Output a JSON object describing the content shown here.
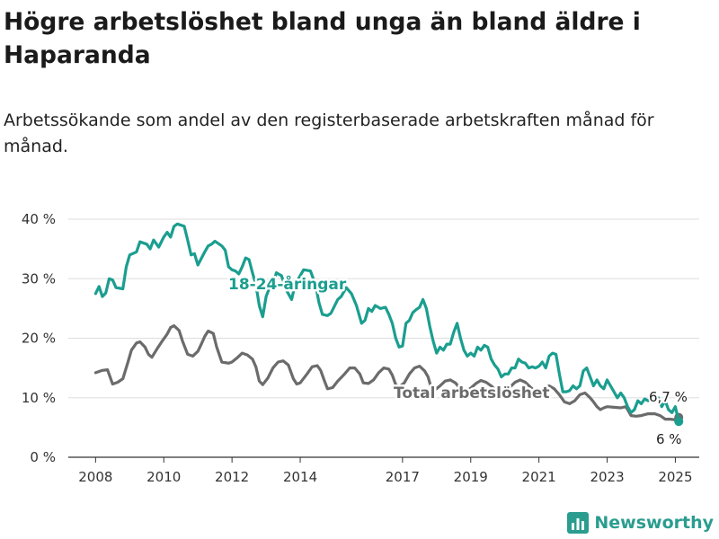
{
  "title": "Högre arbetslöshet bland unga än bland äldre i Haparanda",
  "subtitle": "Arbetssökande som andel av den registerbaserade arbetskraften månad för månad.",
  "logo_text": "Newsworthy",
  "colors": {
    "youth": "#1a9e8f",
    "total": "#6b6b6b",
    "grid": "#dddddd",
    "axis": "#333333",
    "logo": "#2a9d8f"
  },
  "chart_data": {
    "type": "line",
    "ylim": [
      0,
      40
    ],
    "y_ticks": [
      0,
      10,
      20,
      30,
      40
    ],
    "y_tick_labels": [
      "0 %",
      "10 %",
      "20 %",
      "30 %",
      "40 %"
    ],
    "x_ticks": [
      2008,
      2010,
      2012,
      2014,
      2017,
      2019,
      2021,
      2023,
      2025
    ],
    "x_tick_labels": [
      "2008",
      "2010",
      "2012",
      "2014",
      "2017",
      "2019",
      "2021",
      "2023",
      "2025"
    ],
    "grid": true,
    "series": [
      {
        "name": "18-24-åringar",
        "color": "#1a9e8f",
        "end_label": "6 %",
        "points": [
          [
            2008.0,
            27.5
          ],
          [
            2008.1,
            28.7
          ],
          [
            2008.2,
            27.0
          ],
          [
            2008.3,
            27.6
          ],
          [
            2008.4,
            30.0
          ],
          [
            2008.5,
            29.8
          ],
          [
            2008.6,
            28.5
          ],
          [
            2008.8,
            28.3
          ],
          [
            2008.9,
            32.0
          ],
          [
            2009.0,
            34.0
          ],
          [
            2009.2,
            34.5
          ],
          [
            2009.3,
            36.2
          ],
          [
            2009.5,
            35.8
          ],
          [
            2009.6,
            35.0
          ],
          [
            2009.7,
            36.5
          ],
          [
            2009.85,
            35.3
          ],
          [
            2010.0,
            37.0
          ],
          [
            2010.1,
            37.8
          ],
          [
            2010.2,
            37.0
          ],
          [
            2010.3,
            38.8
          ],
          [
            2010.4,
            39.2
          ],
          [
            2010.6,
            38.8
          ],
          [
            2010.7,
            36.5
          ],
          [
            2010.8,
            34.0
          ],
          [
            2010.9,
            34.2
          ],
          [
            2011.0,
            32.3
          ],
          [
            2011.2,
            34.5
          ],
          [
            2011.3,
            35.5
          ],
          [
            2011.4,
            35.8
          ],
          [
            2011.5,
            36.3
          ],
          [
            2011.7,
            35.5
          ],
          [
            2011.8,
            34.8
          ],
          [
            2011.9,
            32.0
          ],
          [
            2012.0,
            31.5
          ],
          [
            2012.1,
            31.3
          ],
          [
            2012.2,
            30.8
          ],
          [
            2012.3,
            32.0
          ],
          [
            2012.4,
            33.5
          ],
          [
            2012.5,
            33.2
          ],
          [
            2012.6,
            31.0
          ],
          [
            2012.7,
            29.0
          ],
          [
            2012.8,
            25.5
          ],
          [
            2012.9,
            23.6
          ],
          [
            2013.0,
            27.0
          ],
          [
            2013.1,
            28.5
          ],
          [
            2013.2,
            29.0
          ],
          [
            2013.3,
            31.0
          ],
          [
            2013.45,
            30.5
          ],
          [
            2013.6,
            28.0
          ],
          [
            2013.75,
            26.5
          ],
          [
            2013.85,
            29.0
          ],
          [
            2014.0,
            30.5
          ],
          [
            2014.1,
            31.5
          ],
          [
            2014.3,
            31.3
          ],
          [
            2014.45,
            29.0
          ],
          [
            2014.55,
            26.0
          ],
          [
            2014.65,
            24.0
          ],
          [
            2014.8,
            23.8
          ],
          [
            2014.9,
            24.2
          ],
          [
            2015.1,
            26.5
          ],
          [
            2015.2,
            27.0
          ],
          [
            2015.35,
            28.5
          ],
          [
            2015.5,
            27.5
          ],
          [
            2015.65,
            25.5
          ],
          [
            2015.8,
            22.5
          ],
          [
            2015.9,
            23.0
          ],
          [
            2016.0,
            25.0
          ],
          [
            2016.1,
            24.5
          ],
          [
            2016.2,
            25.5
          ],
          [
            2016.35,
            25.0
          ],
          [
            2016.5,
            25.2
          ],
          [
            2016.6,
            24.0
          ],
          [
            2016.7,
            22.5
          ],
          [
            2016.8,
            20.0
          ],
          [
            2016.9,
            18.5
          ],
          [
            2017.0,
            18.7
          ],
          [
            2017.1,
            22.5
          ],
          [
            2017.2,
            23.0
          ],
          [
            2017.3,
            24.3
          ],
          [
            2017.4,
            24.8
          ],
          [
            2017.5,
            25.2
          ],
          [
            2017.6,
            26.5
          ],
          [
            2017.7,
            25.0
          ],
          [
            2017.8,
            22.0
          ],
          [
            2017.9,
            19.5
          ],
          [
            2018.0,
            17.5
          ],
          [
            2018.1,
            18.5
          ],
          [
            2018.2,
            18.0
          ],
          [
            2018.3,
            19.0
          ],
          [
            2018.4,
            19.0
          ],
          [
            2018.5,
            21.0
          ],
          [
            2018.6,
            22.5
          ],
          [
            2018.7,
            20.0
          ],
          [
            2018.8,
            18.0
          ],
          [
            2018.9,
            17.0
          ],
          [
            2019.0,
            17.5
          ],
          [
            2019.1,
            17.0
          ],
          [
            2019.2,
            18.5
          ],
          [
            2019.3,
            18.0
          ],
          [
            2019.4,
            18.8
          ],
          [
            2019.5,
            18.5
          ],
          [
            2019.6,
            16.5
          ],
          [
            2019.7,
            15.5
          ],
          [
            2019.8,
            14.8
          ],
          [
            2019.9,
            13.5
          ],
          [
            2020.0,
            14.0
          ],
          [
            2020.1,
            14.0
          ],
          [
            2020.2,
            15.0
          ],
          [
            2020.3,
            15.0
          ],
          [
            2020.4,
            16.5
          ],
          [
            2020.5,
            16.0
          ],
          [
            2020.6,
            15.8
          ],
          [
            2020.7,
            15.0
          ],
          [
            2020.8,
            15.2
          ],
          [
            2020.9,
            15.0
          ],
          [
            2021.0,
            15.3
          ],
          [
            2021.1,
            16.0
          ],
          [
            2021.2,
            15.0
          ],
          [
            2021.3,
            17.0
          ],
          [
            2021.4,
            17.5
          ],
          [
            2021.5,
            17.3
          ],
          [
            2021.6,
            14.0
          ],
          [
            2021.7,
            11.0
          ],
          [
            2021.8,
            11.0
          ],
          [
            2021.9,
            11.2
          ],
          [
            2022.0,
            12.0
          ],
          [
            2022.1,
            11.5
          ],
          [
            2022.2,
            12.0
          ],
          [
            2022.3,
            14.5
          ],
          [
            2022.4,
            15.0
          ],
          [
            2022.5,
            13.5
          ],
          [
            2022.6,
            12.0
          ],
          [
            2022.7,
            13.0
          ],
          [
            2022.8,
            12.0
          ],
          [
            2022.9,
            11.5
          ],
          [
            2023.0,
            13.0
          ],
          [
            2023.1,
            12.0
          ],
          [
            2023.2,
            11.0
          ],
          [
            2023.3,
            10.0
          ],
          [
            2023.4,
            10.8
          ],
          [
            2023.5,
            10.0
          ],
          [
            2023.6,
            8.5
          ],
          [
            2023.7,
            7.5
          ],
          [
            2023.8,
            8.0
          ],
          [
            2023.9,
            9.5
          ],
          [
            2024.0,
            9.0
          ],
          [
            2024.1,
            9.8
          ],
          [
            2024.2,
            9.5
          ],
          [
            2024.3,
            10.0
          ],
          [
            2024.4,
            9.5
          ],
          [
            2024.5,
            10.0
          ],
          [
            2024.6,
            8.5
          ],
          [
            2024.7,
            9.5
          ],
          [
            2024.8,
            8.0
          ],
          [
            2024.9,
            7.5
          ],
          [
            2025.0,
            8.5
          ],
          [
            2025.1,
            6.0
          ]
        ]
      },
      {
        "name": "Total arbetslöshet",
        "color": "#6b6b6b",
        "end_label": "6,7 %",
        "points": [
          [
            2008.0,
            14.2
          ],
          [
            2008.2,
            14.6
          ],
          [
            2008.35,
            14.7
          ],
          [
            2008.5,
            12.3
          ],
          [
            2008.65,
            12.6
          ],
          [
            2008.8,
            13.2
          ],
          [
            2008.95,
            16.0
          ],
          [
            2009.05,
            18.0
          ],
          [
            2009.2,
            19.2
          ],
          [
            2009.3,
            19.4
          ],
          [
            2009.45,
            18.5
          ],
          [
            2009.55,
            17.3
          ],
          [
            2009.65,
            16.8
          ],
          [
            2009.8,
            18.2
          ],
          [
            2009.95,
            19.5
          ],
          [
            2010.1,
            20.7
          ],
          [
            2010.2,
            21.8
          ],
          [
            2010.3,
            22.1
          ],
          [
            2010.45,
            21.3
          ],
          [
            2010.55,
            19.5
          ],
          [
            2010.7,
            17.3
          ],
          [
            2010.85,
            17.0
          ],
          [
            2011.0,
            17.8
          ],
          [
            2011.1,
            19.0
          ],
          [
            2011.2,
            20.3
          ],
          [
            2011.3,
            21.2
          ],
          [
            2011.45,
            20.8
          ],
          [
            2011.55,
            18.5
          ],
          [
            2011.7,
            16.0
          ],
          [
            2011.9,
            15.8
          ],
          [
            2012.0,
            16.0
          ],
          [
            2012.15,
            16.7
          ],
          [
            2012.3,
            17.5
          ],
          [
            2012.45,
            17.2
          ],
          [
            2012.6,
            16.5
          ],
          [
            2012.7,
            15.2
          ],
          [
            2012.8,
            12.8
          ],
          [
            2012.9,
            12.2
          ],
          [
            2013.05,
            13.3
          ],
          [
            2013.2,
            15.0
          ],
          [
            2013.35,
            16.0
          ],
          [
            2013.5,
            16.2
          ],
          [
            2013.65,
            15.5
          ],
          [
            2013.8,
            13.2
          ],
          [
            2013.9,
            12.3
          ],
          [
            2014.0,
            12.5
          ],
          [
            2014.2,
            14.0
          ],
          [
            2014.35,
            15.2
          ],
          [
            2014.5,
            15.4
          ],
          [
            2014.6,
            14.6
          ],
          [
            2014.7,
            13.0
          ],
          [
            2014.8,
            11.5
          ],
          [
            2014.95,
            11.7
          ],
          [
            2015.1,
            12.8
          ],
          [
            2015.3,
            14.0
          ],
          [
            2015.45,
            15.0
          ],
          [
            2015.6,
            15.0
          ],
          [
            2015.75,
            14.0
          ],
          [
            2015.85,
            12.5
          ],
          [
            2016.0,
            12.4
          ],
          [
            2016.15,
            13.0
          ],
          [
            2016.3,
            14.2
          ],
          [
            2016.45,
            15.0
          ],
          [
            2016.6,
            14.8
          ],
          [
            2016.7,
            13.8
          ],
          [
            2016.8,
            12.2
          ],
          [
            2016.9,
            11.8
          ],
          [
            2017.05,
            12.5
          ],
          [
            2017.2,
            14.0
          ],
          [
            2017.35,
            15.0
          ],
          [
            2017.5,
            15.3
          ],
          [
            2017.65,
            14.5
          ],
          [
            2017.75,
            13.5
          ],
          [
            2017.85,
            11.5
          ],
          [
            2017.95,
            11.3
          ],
          [
            2018.1,
            12.0
          ],
          [
            2018.25,
            12.8
          ],
          [
            2018.4,
            13.0
          ],
          [
            2018.55,
            12.5
          ],
          [
            2018.7,
            11.5
          ],
          [
            2018.85,
            11.0
          ],
          [
            2019.0,
            11.6
          ],
          [
            2019.15,
            12.4
          ],
          [
            2019.3,
            12.9
          ],
          [
            2019.45,
            12.6
          ],
          [
            2019.6,
            12.0
          ],
          [
            2019.75,
            11.2
          ],
          [
            2019.9,
            10.8
          ],
          [
            2020.1,
            11.5
          ],
          [
            2020.3,
            12.6
          ],
          [
            2020.45,
            13.0
          ],
          [
            2020.6,
            12.6
          ],
          [
            2020.8,
            11.5
          ],
          [
            2020.95,
            10.8
          ],
          [
            2021.1,
            11.5
          ],
          [
            2021.3,
            12.0
          ],
          [
            2021.45,
            11.5
          ],
          [
            2021.6,
            10.5
          ],
          [
            2021.75,
            9.3
          ],
          [
            2021.9,
            9.0
          ],
          [
            2022.05,
            9.5
          ],
          [
            2022.2,
            10.5
          ],
          [
            2022.35,
            10.8
          ],
          [
            2022.5,
            10.0
          ],
          [
            2022.6,
            9.3
          ],
          [
            2022.7,
            8.5
          ],
          [
            2022.8,
            8.0
          ],
          [
            2022.9,
            8.3
          ],
          [
            2023.0,
            8.5
          ],
          [
            2023.2,
            8.4
          ],
          [
            2023.4,
            8.3
          ],
          [
            2023.55,
            8.5
          ],
          [
            2023.7,
            7.0
          ],
          [
            2023.85,
            6.9
          ],
          [
            2024.0,
            7.0
          ],
          [
            2024.2,
            7.3
          ],
          [
            2024.4,
            7.3
          ],
          [
            2024.55,
            7.0
          ],
          [
            2024.7,
            6.4
          ],
          [
            2024.85,
            6.4
          ],
          [
            2025.0,
            6.3
          ],
          [
            2025.1,
            6.7
          ]
        ]
      }
    ]
  }
}
